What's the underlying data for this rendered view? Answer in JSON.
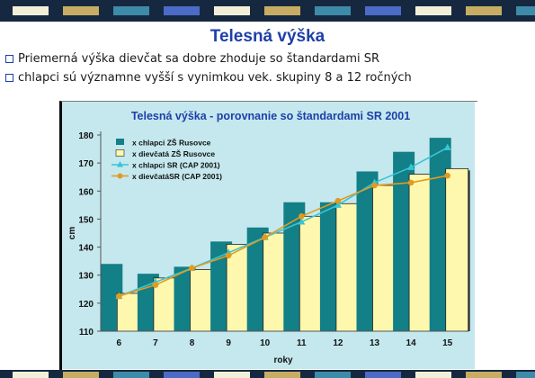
{
  "slide": {
    "title": "Telesná výška",
    "bullets": [
      "Priemerná výška dievčat sa dobre zhoduje so štandardami SR",
      "chlapci sú významne vyšší s vynimkou vek. skupiny  8 a 12 ročných"
    ]
  },
  "colors": {
    "header_bar": "#16283f",
    "deco_cream": "#f2efd9",
    "deco_gold": "#c6ad63",
    "deco_teal": "#3d8ba8",
    "deco_blue": "#4b6bc7",
    "title": "#1f3fa8",
    "plot_bg": "#c4e8ee",
    "chart_title": "#1f3fa8",
    "boys_bar": "#137f86",
    "girls_bar": "#fdf8ad",
    "sr_boys_line": "#37c5d6",
    "sr_girls_line": "#e39a20"
  },
  "chart_data": {
    "type": "bar",
    "title": "Telesná výška -  porovnanie  so štandardami SR 2001",
    "xlabel": "roky",
    "ylabel": "cm",
    "categories": [
      "6",
      "7",
      "8",
      "9",
      "10",
      "11",
      "12",
      "13",
      "14",
      "15"
    ],
    "ylim": [
      110,
      180
    ],
    "yticks": [
      "110",
      "120",
      "130",
      "140",
      "150",
      "160",
      "170",
      "180"
    ],
    "grid": false,
    "legend_position": "top-left",
    "series": [
      {
        "name": "x chlapci ZŠ Rusovce",
        "kind": "bar",
        "color": "#137f86",
        "values": [
          134,
          130.5,
          133,
          142,
          147,
          156,
          156,
          167,
          174,
          179
        ]
      },
      {
        "name": "x dievčatá ZŠ Rusovce",
        "kind": "bar",
        "color": "#fdf8ad",
        "values": [
          123.5,
          129,
          132,
          141,
          145,
          151,
          155.5,
          162,
          166,
          168
        ]
      },
      {
        "name": "x chlapci SR (CAP 2001)",
        "kind": "line",
        "marker": "triangle",
        "color": "#37c5d6",
        "values": [
          122.5,
          127.5,
          132.5,
          138,
          143.5,
          149,
          155,
          163,
          168.5,
          175.5
        ]
      },
      {
        "name": "x dievčatáSR (CAP 2001)",
        "kind": "line",
        "marker": "circle",
        "color": "#e39a20",
        "values": [
          122.5,
          126.5,
          132.5,
          137,
          143.5,
          151,
          156.5,
          162,
          163,
          165.5
        ]
      }
    ]
  }
}
